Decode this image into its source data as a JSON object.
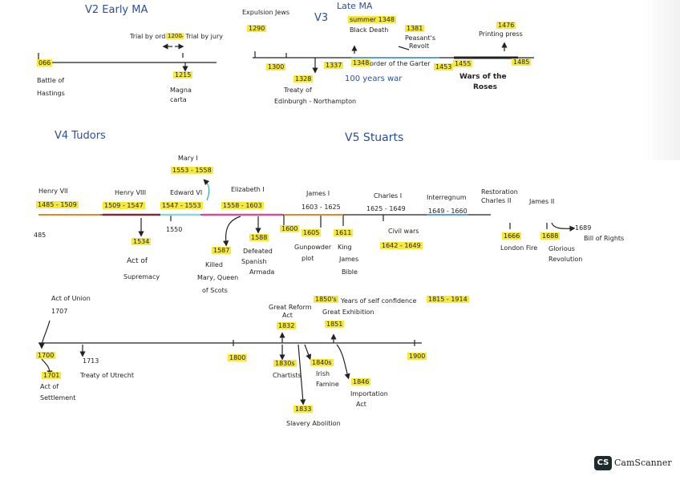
{
  "sections": {
    "v2": "V2   Early MA",
    "late": "Late MA",
    "v3": "V3",
    "v4": "V4   Tudors",
    "v5": "V5   Stuarts"
  },
  "early_ma": {
    "d1066": "066",
    "battle": "Battle of",
    "hastings": "Hastings",
    "trial_prefix": "Trial by ordeal",
    "trial_year": "1200",
    "trial_suffix": "- Trial by jury",
    "d1215": "1215",
    "magna": "Magna",
    "carta": "carta"
  },
  "late_ma": {
    "expulsion": "Expulsion Jews",
    "d1290": "1290",
    "d1300": "1300",
    "d1328": "1328",
    "treaty1": "Treaty of",
    "treaty2": "Edinburgh - Northampton",
    "summer": "summer 1348",
    "black_death": "Black Death",
    "d1337": "1337",
    "d1348": "1348",
    "order": "order of the Garter",
    "d1381": "1381",
    "peasants1": "Peasant's",
    "peasants2": "Revolt",
    "hundred": "100 years war",
    "d1453": "1453",
    "d1455": "1455",
    "d1476": "1476",
    "printing": "Printing press",
    "d1485": "1485",
    "wars1": "Wars of the",
    "wars2": "Roses"
  },
  "tudors": {
    "henry7": "Henry VII",
    "henry7_years": "1485 - 1509",
    "henry8": "Henry VIII",
    "henry8_years": "1509 - 1547",
    "edward": "Edward VI",
    "edward_years": "1547 - 1553",
    "mary": "Mary I",
    "mary_years": "1553 - 1558",
    "eliz": "Elizabeth I",
    "eliz_years": "1558 - 1603",
    "d1485": "485",
    "d1534": "1534",
    "act1": "Act of",
    "act2": "Supremacy",
    "d1550": "1550",
    "d1587": "1587",
    "killed1": "Killed",
    "killed2": "Mary, Queen",
    "killed3": "of Scots",
    "d1588": "1588",
    "defeated1": "Defeated",
    "defeated2": "Spanish",
    "defeated3": "Armada"
  },
  "stuarts": {
    "james1": "James I",
    "james1_years": "1603 - 1625",
    "charles1": "Charles I",
    "charles1_years": "1625 - 1649",
    "inter": "Interregnum",
    "inter_years": "1649 - 1660",
    "resto1": "Restoration",
    "resto2": "Charles II",
    "james2": "James II",
    "d1600": "1600",
    "d1605": "1605",
    "gunpowder1": "Gunpowder",
    "gunpowder2": "plot",
    "d1611": "1611",
    "king1": "King",
    "king2": "James",
    "king3": "Bible",
    "civil": "Civil wars",
    "civil_years": "1642 - 1649",
    "d1666": "1666",
    "fire": "London Fire",
    "d1688": "1688",
    "glorious1": "Glorious",
    "glorious2": "Revolution",
    "d1689": "1689",
    "bill": "Bill of Rights"
  },
  "modern": {
    "union1": "Act of Union",
    "union2": "1707",
    "d1700": "1700",
    "d1701": "1701",
    "settle1": "Act of",
    "settle2": "Settlement",
    "d1713": "1713",
    "utrecht": "Treaty of Utrecht",
    "d1800": "1800",
    "great1": "Great Reform",
    "great2": "Act",
    "d1832": "1832",
    "d1830s": "1830s",
    "chartists": "Chartists",
    "d1833": "1833",
    "slavery": "Slavery Abolition",
    "years_prefix": "1850's",
    "years_self": "Years of self confidence",
    "d1815_1914": "1815 - 1914",
    "exhibition": "Great Exhibition",
    "d1851": "1851",
    "d1840s": "1840s",
    "irish1": "Irish",
    "irish2": "Famine",
    "d1846": "1846",
    "import1": "Importation",
    "import2": "Act",
    "d1900": "1900"
  },
  "watermark": {
    "logo": "CS",
    "name": "CamScanner"
  },
  "colors": {
    "highlight": "#f6e83c",
    "ink": "#222222",
    "heading": "#2a4f9a",
    "orange_line": "#e6862a",
    "blue_line": "#5aa0e0",
    "pink_line": "#d24f9b",
    "teal_line": "#8fd3e0",
    "maroon_line": "#7a2a3a"
  }
}
